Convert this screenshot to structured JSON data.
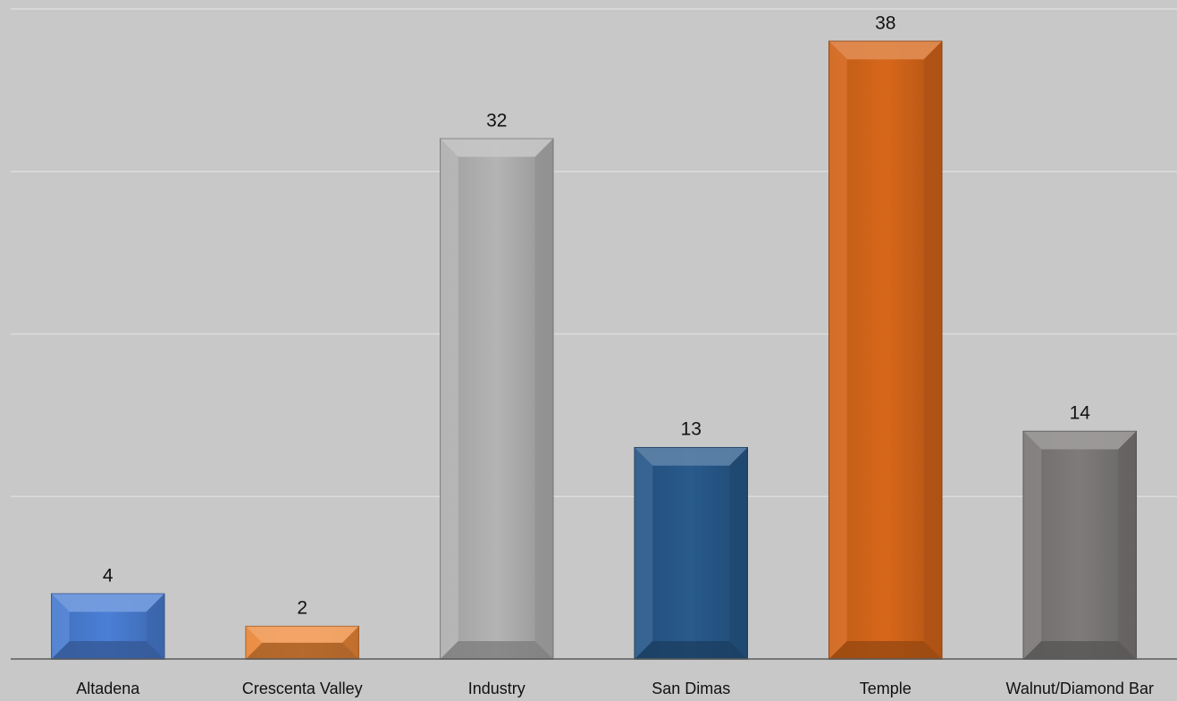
{
  "chart_data": {
    "type": "bar",
    "title": "",
    "xlabel": "",
    "ylabel": "",
    "categories": [
      "Altadena",
      "Crescenta Valley",
      "Industry",
      "San Dimas",
      "Temple",
      "Walnut/Diamond Bar"
    ],
    "values": [
      4,
      2,
      32,
      13,
      38,
      14
    ],
    "data_labels": [
      "4",
      "2",
      "32",
      "13",
      "38",
      "14"
    ],
    "ylim": [
      0,
      40
    ],
    "grid": true,
    "legend": "none",
    "colors": [
      "#4a7fd6",
      "#f08a3a",
      "#b4b4b4",
      "#285a8c",
      "#d7671a",
      "#7e7b7a"
    ],
    "background": "#c8c8c8",
    "gridline_color": "#dcdcdc",
    "axis_color": "#5a5a5a"
  }
}
